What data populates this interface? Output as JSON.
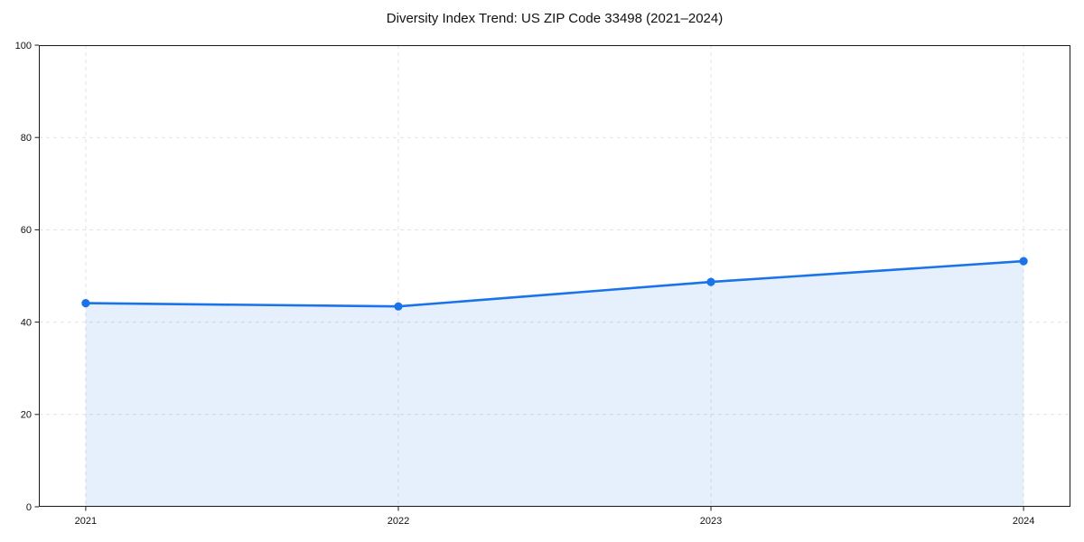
{
  "chart_data": {
    "type": "line",
    "title": "Diversity Index Trend: US ZIP Code 33498 (2021–2024)",
    "x": [
      2021,
      2022,
      2023,
      2024
    ],
    "series": [
      {
        "name": "Diversity Index",
        "values": [
          44.1,
          43.4,
          48.7,
          53.2
        ]
      }
    ],
    "xticks": [
      "2021",
      "2022",
      "2023",
      "2024"
    ],
    "yticks": [
      0,
      20,
      40,
      60,
      80,
      100
    ],
    "xlim": [
      2020.85,
      2024.15
    ],
    "ylim": [
      0,
      100
    ],
    "xlabel": "",
    "ylabel": "",
    "grid": "dashed",
    "legend": "none",
    "area_fill": true,
    "marker": "circle",
    "colors": {
      "line": "#1a73e8",
      "marker": "#1a73e8",
      "fill": "#1a73e8",
      "fill_opacity": 0.11,
      "grid": "#e2e2e2",
      "spine": "#1a1a1a",
      "text": "#111111",
      "background": "#ffffff"
    }
  }
}
